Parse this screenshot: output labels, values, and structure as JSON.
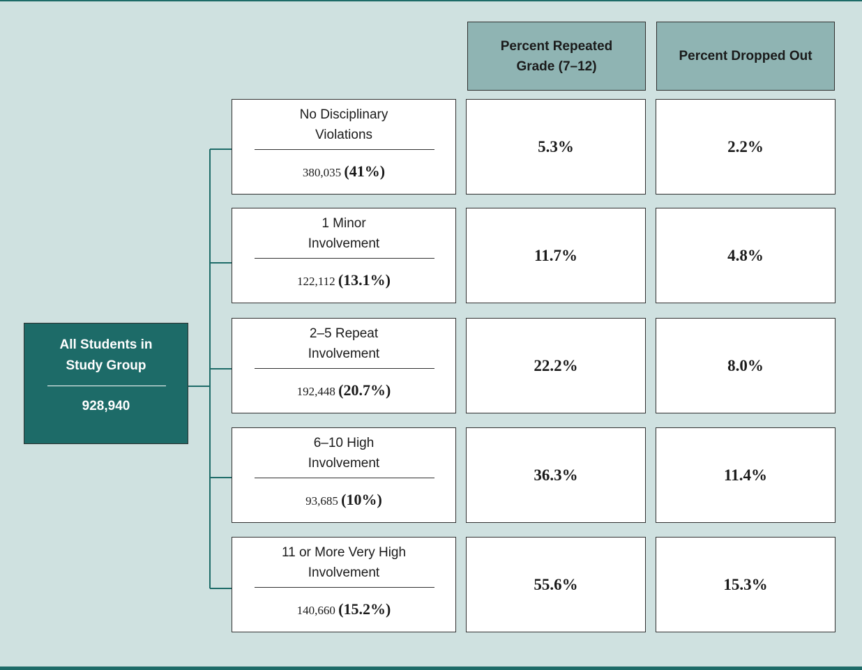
{
  "headers": {
    "repeated": "Percent Repeated Grade (7–12)",
    "dropped": "Percent Dropped Out"
  },
  "root": {
    "title": "All Students in Study Group",
    "count": "928,940"
  },
  "groups": [
    {
      "label": "No Disciplinary Violations",
      "count": "380,035",
      "pct": "(41%)",
      "repeated": "5.3%",
      "dropped": "2.2%"
    },
    {
      "label": "1 Minor Involvement",
      "count": "122,112",
      "pct": "(13.1%)",
      "repeated": "11.7%",
      "dropped": "4.8%"
    },
    {
      "label": "2–5 Repeat Involvement",
      "count": "192,448",
      "pct": "(20.7%)",
      "repeated": "22.2%",
      "dropped": "8.0%"
    },
    {
      "label": "6–10 High Involvement",
      "count": "93,685",
      "pct": "(10%)",
      "repeated": "36.3%",
      "dropped": "11.4%"
    },
    {
      "label": "11 or More Very High Involvement",
      "count": "140,660",
      "pct": "(15.2%)",
      "repeated": "55.6%",
      "dropped": "15.3%"
    }
  ],
  "colors": {
    "background": "#cfe1e0",
    "accent": "#1d6b68",
    "header": "#8fb4b3"
  }
}
